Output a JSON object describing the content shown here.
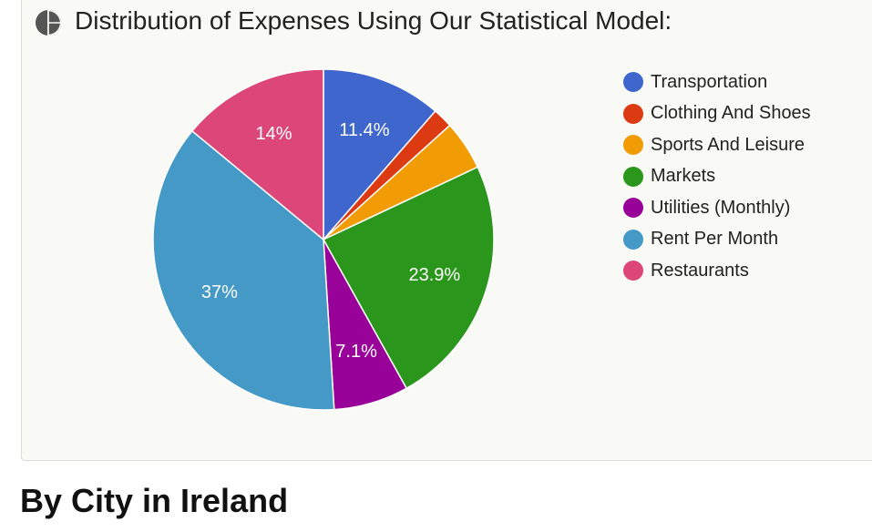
{
  "header": {
    "icon": "pie-chart-icon",
    "title": "Distribution of Expenses Using Our Statistical Model:"
  },
  "chart_data": {
    "type": "pie",
    "title": "Distribution of Expenses Using Our Statistical Model:",
    "legend_position": "right",
    "slices": [
      {
        "label": "Transportation",
        "value": 11.4,
        "display": "11.4%",
        "color": "#3e66cc"
      },
      {
        "label": "Clothing And Shoes",
        "value": 1.9,
        "display": "",
        "color": "#dc3a12"
      },
      {
        "label": "Sports And Leisure",
        "value": 4.7,
        "display": "",
        "color": "#f29c05"
      },
      {
        "label": "Markets",
        "value": 23.9,
        "display": "23.9%",
        "color": "#2a961b"
      },
      {
        "label": "Utilities (Monthly)",
        "value": 7.1,
        "display": "7.1%",
        "color": "#980298"
      },
      {
        "label": "Rent Per Month",
        "value": 37,
        "display": "37%",
        "color": "#4499c6"
      },
      {
        "label": "Restaurants",
        "value": 14,
        "display": "14%",
        "color": "#dc4679"
      }
    ]
  },
  "section": {
    "heading": "By City in Ireland"
  }
}
